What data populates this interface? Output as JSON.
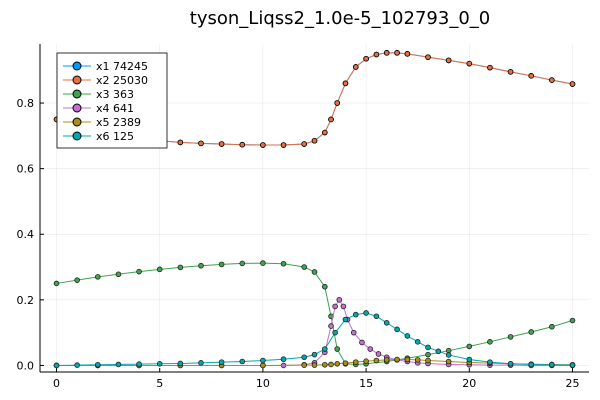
{
  "chart_data": {
    "type": "line",
    "title": "tyson_Liqss2_1.0e-5_102793_0_0",
    "xlabel": "",
    "ylabel": "",
    "xlim": [
      -0.8,
      25.8
    ],
    "ylim": [
      -0.02,
      0.98
    ],
    "xticks": [
      0,
      5,
      10,
      15,
      20,
      25
    ],
    "yticks": [
      0.0,
      0.2,
      0.4,
      0.6,
      0.8
    ],
    "xtick_labels": [
      "0",
      "5",
      "10",
      "15",
      "20",
      "25"
    ],
    "ytick_labels": [
      "0.0",
      "0.2",
      "0.4",
      "0.6",
      "0.8"
    ],
    "grid": true,
    "legend_position": "top-left",
    "series": [
      {
        "name": "x1 74245",
        "color": "#009AFA",
        "x": [
          0,
          1,
          2,
          3,
          4,
          5,
          6,
          7,
          8,
          9,
          10,
          11,
          12,
          12.5,
          13,
          13.3,
          13.6,
          14,
          14.5,
          15,
          15.5,
          16,
          16.5,
          17,
          18,
          19,
          20,
          21,
          22,
          23,
          24,
          25
        ],
        "y": [
          0.75,
          0.72,
          0.705,
          0.695,
          0.69,
          0.685,
          0.68,
          0.677,
          0.675,
          0.673,
          0.672,
          0.672,
          0.675,
          0.685,
          0.71,
          0.75,
          0.8,
          0.86,
          0.91,
          0.935,
          0.948,
          0.953,
          0.953,
          0.95,
          0.94,
          0.93,
          0.92,
          0.908,
          0.895,
          0.883,
          0.87,
          0.858
        ]
      },
      {
        "name": "x2 25030",
        "color": "#E36F47",
        "x": [
          0,
          1,
          2,
          3,
          4,
          5,
          6,
          7,
          8,
          9,
          10,
          11,
          12,
          12.5,
          13,
          13.3,
          13.6,
          14,
          14.5,
          15,
          15.5,
          16,
          16.5,
          17,
          18,
          19,
          20,
          21,
          22,
          23,
          24,
          25
        ],
        "y": [
          0.75,
          0.72,
          0.705,
          0.695,
          0.69,
          0.685,
          0.68,
          0.677,
          0.675,
          0.673,
          0.672,
          0.672,
          0.675,
          0.685,
          0.71,
          0.75,
          0.8,
          0.86,
          0.91,
          0.935,
          0.948,
          0.953,
          0.953,
          0.95,
          0.94,
          0.93,
          0.92,
          0.908,
          0.895,
          0.883,
          0.87,
          0.858
        ]
      },
      {
        "name": "x3 363",
        "color": "#3EA44E",
        "x": [
          0,
          1,
          2,
          3,
          4,
          5,
          6,
          7,
          8,
          9,
          10,
          11,
          12,
          12.5,
          13,
          13.3,
          13.6,
          14,
          14.5,
          15,
          16,
          17,
          18,
          19,
          20,
          21,
          22,
          23,
          24,
          25
        ],
        "y": [
          0.25,
          0.26,
          0.27,
          0.278,
          0.286,
          0.293,
          0.299,
          0.304,
          0.308,
          0.311,
          0.312,
          0.31,
          0.3,
          0.285,
          0.24,
          0.15,
          0.05,
          0.005,
          0.003,
          0.005,
          0.012,
          0.022,
          0.033,
          0.045,
          0.058,
          0.072,
          0.087,
          0.102,
          0.118,
          0.137
        ]
      },
      {
        "name": "x4 641",
        "color": "#C271D2",
        "x": [
          0,
          2,
          4,
          6,
          8,
          10,
          11,
          12,
          12.5,
          13,
          13.3,
          13.5,
          13.7,
          13.9,
          14.1,
          14.4,
          14.8,
          15.2,
          15.6,
          16,
          16.5,
          17,
          17.5,
          18,
          19,
          20,
          21,
          22,
          23,
          24,
          25
        ],
        "y": [
          0.0,
          0.0,
          0.0,
          0.0,
          0.0,
          0.0,
          0.0,
          0.002,
          0.008,
          0.04,
          0.12,
          0.18,
          0.2,
          0.18,
          0.14,
          0.1,
          0.07,
          0.05,
          0.035,
          0.025,
          0.017,
          0.012,
          0.008,
          0.006,
          0.003,
          0.002,
          0.001,
          0.001,
          0.0,
          0.0,
          0.0
        ]
      },
      {
        "name": "x5 2389",
        "color": "#AC8D18",
        "x": [
          0,
          2,
          4,
          6,
          8,
          10,
          12,
          12.5,
          13,
          13.3,
          13.6,
          14,
          14.5,
          15,
          15.5,
          16,
          16.5,
          17,
          17.5,
          18,
          19,
          20,
          21,
          22,
          23,
          24,
          25
        ],
        "y": [
          0.0,
          0.0,
          0.0,
          0.0,
          0.0,
          0.0,
          0.001,
          0.001,
          0.002,
          0.003,
          0.005,
          0.007,
          0.01,
          0.013,
          0.015,
          0.017,
          0.018,
          0.018,
          0.017,
          0.015,
          0.012,
          0.009,
          0.007,
          0.005,
          0.004,
          0.003,
          0.002
        ]
      },
      {
        "name": "x6 125",
        "color": "#00A9AD",
        "x": [
          0,
          1,
          2,
          3,
          4,
          5,
          6,
          7,
          8,
          9,
          10,
          11,
          12,
          12.5,
          13,
          13.5,
          14,
          14.5,
          15,
          15.5,
          16,
          16.5,
          17,
          17.5,
          18,
          18.5,
          19,
          20,
          21,
          22,
          23,
          24,
          25
        ],
        "y": [
          0.0,
          0.001,
          0.002,
          0.003,
          0.004,
          0.005,
          0.006,
          0.008,
          0.01,
          0.012,
          0.015,
          0.019,
          0.025,
          0.033,
          0.05,
          0.1,
          0.14,
          0.155,
          0.16,
          0.15,
          0.13,
          0.11,
          0.09,
          0.072,
          0.055,
          0.043,
          0.032,
          0.018,
          0.01,
          0.005,
          0.003,
          0.002,
          0.001
        ]
      }
    ]
  }
}
